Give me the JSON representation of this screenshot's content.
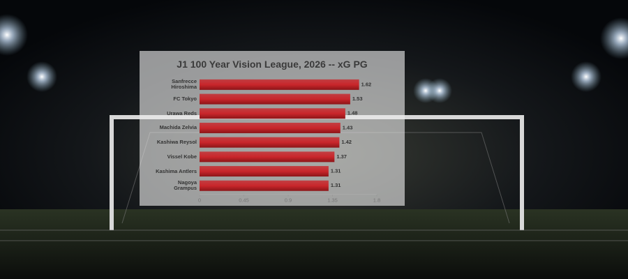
{
  "chart_data": {
    "type": "bar",
    "title": "J1 100 Year Vision League, 2026 -- xG PG",
    "categories": [
      "Sanfrecce Hiroshima",
      "FC Tokyo",
      "Urawa Reds",
      "Machida Zelvia",
      "Kashiwa Reysol",
      "Vissel Kobe",
      "Kashima Antlers",
      "Nagoya Grampus"
    ],
    "values": [
      1.62,
      1.53,
      1.48,
      1.43,
      1.42,
      1.37,
      1.31,
      1.31
    ],
    "color": "#c9262b",
    "xlim": [
      0,
      1.8
    ],
    "xticks": [
      0,
      0.45,
      0.9,
      1.35,
      1.8
    ]
  }
}
